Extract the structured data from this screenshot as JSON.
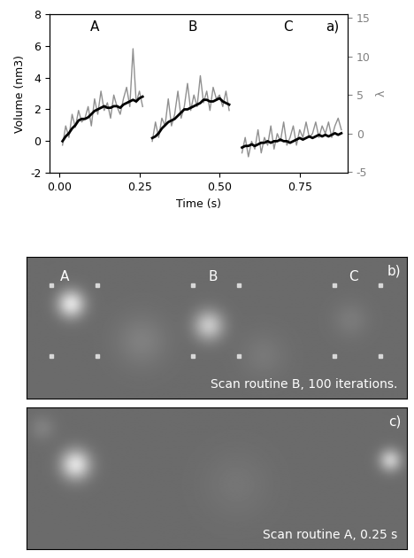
{
  "chart_data": {
    "type": "line",
    "x": [
      0.01,
      0.02,
      0.03,
      0.04,
      0.05,
      0.06,
      0.07,
      0.08,
      0.09,
      0.1,
      0.11,
      0.12,
      0.13,
      0.14,
      0.15,
      0.16,
      0.17,
      0.18,
      0.19,
      0.2,
      0.21,
      0.22,
      0.23,
      0.24,
      0.25,
      0.26,
      0.27,
      0.28,
      0.29,
      0.3,
      0.31,
      0.32,
      0.33,
      0.34,
      0.35,
      0.36,
      0.37,
      0.38,
      0.39,
      0.4,
      0.41,
      0.42,
      0.43,
      0.44,
      0.45,
      0.46,
      0.47,
      0.48,
      0.49,
      0.5,
      0.51,
      0.52,
      0.53,
      0.54,
      0.55,
      0.56,
      0.57,
      0.58,
      0.59,
      0.6,
      0.61,
      0.62,
      0.63,
      0.64,
      0.65,
      0.66,
      0.67,
      0.68,
      0.69,
      0.7,
      0.71,
      0.72,
      0.73,
      0.74,
      0.75,
      0.76,
      0.77,
      0.78,
      0.79,
      0.8,
      0.81,
      0.82,
      0.83,
      0.84,
      0.85,
      0.86,
      0.87,
      0.88
    ],
    "series": [
      {
        "color": "#909090",
        "axis": "y2",
        "values": [
          -1.5,
          1.0,
          -0.5,
          2.5,
          0.8,
          3.0,
          1.5,
          2.0,
          3.5,
          1.0,
          4.5,
          2.5,
          5.5,
          3.0,
          4.0,
          2.0,
          5.0,
          3.5,
          2.5,
          4.5,
          6.0,
          3.5,
          11.0,
          4.0,
          5.5,
          3.5,
          null,
          null,
          -1.0,
          1.5,
          -0.5,
          2.0,
          1.0,
          4.5,
          1.0,
          2.5,
          5.5,
          2.0,
          3.5,
          6.5,
          3.0,
          5.0,
          3.5,
          7.5,
          4.0,
          5.5,
          3.0,
          6.0,
          4.5,
          5.0,
          3.5,
          5.5,
          3.0,
          null,
          null,
          null,
          -2.5,
          -0.5,
          -3.0,
          -1.0,
          -2.0,
          0.5,
          -2.5,
          -0.5,
          -1.5,
          1.0,
          -2.0,
          0.0,
          -1.0,
          1.5,
          -1.5,
          -0.5,
          1.0,
          -1.5,
          0.5,
          -0.5,
          1.5,
          -0.5,
          0.0,
          1.5,
          -0.5,
          1.0,
          0.0,
          1.5,
          -0.5,
          1.0,
          2.0,
          0.5
        ]
      },
      {
        "color": "#000000",
        "values": [
          0.0,
          0.3,
          0.5,
          0.8,
          1.0,
          1.3,
          1.4,
          1.4,
          1.5,
          1.7,
          1.9,
          2.0,
          2.1,
          2.2,
          2.1,
          2.1,
          2.2,
          2.2,
          2.1,
          2.3,
          2.4,
          2.5,
          2.6,
          2.5,
          2.7,
          2.8,
          null,
          null,
          0.2,
          0.3,
          0.5,
          0.8,
          1.0,
          1.2,
          1.3,
          1.4,
          1.6,
          1.8,
          2.0,
          2.0,
          2.1,
          2.2,
          2.3,
          2.4,
          2.6,
          2.6,
          2.5,
          2.5,
          2.6,
          2.7,
          2.5,
          2.4,
          2.3,
          null,
          null,
          null,
          -0.4,
          -0.3,
          -0.3,
          -0.2,
          -0.3,
          -0.2,
          -0.1,
          -0.1,
          0.0,
          -0.1,
          0.0,
          0.0,
          0.1,
          0.0,
          0.0,
          -0.1,
          0.0,
          0.1,
          0.2,
          0.1,
          0.2,
          0.3,
          0.2,
          0.3,
          0.4,
          0.3,
          0.4,
          0.3,
          0.4,
          0.5,
          0.4,
          0.5
        ]
      }
    ],
    "x_label": "Time (s)",
    "y_label": "Volume (nm3)",
    "y2_label": "λ",
    "xlim": [
      -0.03,
      0.9
    ],
    "xticks": [
      {
        "value": 0,
        "label": "0.00"
      },
      0.25,
      {
        "value": 0.5,
        "label": "0.50"
      },
      0.75
    ],
    "ylim": [
      -2,
      8
    ],
    "yticks": [
      -2,
      0,
      2,
      4,
      6,
      8
    ],
    "y2lim": [
      -5.1,
      15.5
    ],
    "y2ticks": [
      -5,
      0,
      5,
      10,
      15
    ],
    "annotations": [
      "A",
      "B",
      "C",
      "a)"
    ]
  },
  "panels": [
    {
      "label": "b)",
      "markers": [
        "A",
        "B",
        "C"
      ],
      "caption": "Scan routine B, 100 iterations."
    },
    {
      "label": "c)",
      "caption": "Scan routine A, 0.25 s"
    }
  ]
}
